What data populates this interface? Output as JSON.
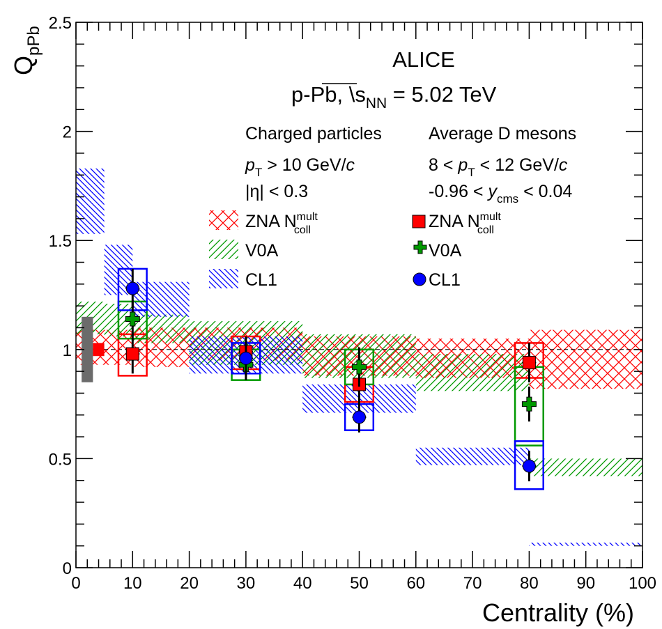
{
  "chart_data": {
    "type": "scatter",
    "xlabel": "Centrality (%)",
    "ylabel": "Q",
    "ylabel_sub": "pPb",
    "xlim": [
      0,
      100
    ],
    "ylim": [
      0,
      2.5
    ],
    "x_ticks": [
      "0",
      "10",
      "20",
      "30",
      "40",
      "50",
      "60",
      "70",
      "80",
      "90",
      "100"
    ],
    "y_ticks": [
      "0",
      "0.5",
      "1",
      "1.5",
      "2",
      "2.5"
    ],
    "reference_line": 1,
    "annotations": {
      "experiment": "ALICE",
      "system": "p-Pb, \\",
      "energy_var": "s",
      "energy_sub": "NN",
      "energy_val": " = 5.02 TeV",
      "charged_title": "Charged particles",
      "charged_pt_p": "p",
      "charged_pt_sub": "T",
      "charged_pt_rest": " > 10 GeV/",
      "charged_pt_c": "c",
      "charged_eta": "|η| < 0.3",
      "dmeson_title": "Average D mesons",
      "dmeson_pt_pre": "8 < ",
      "dmeson_pt_p": "p",
      "dmeson_pt_sub": "T",
      "dmeson_pt_rest": " < 12 GeV/",
      "dmeson_pt_c": "c",
      "dmeson_y_pre": "-0.96 < ",
      "dmeson_y_var": "y",
      "dmeson_y_sub": "cms",
      "dmeson_y_rest": " < 0.04"
    },
    "normalization_uncertainty": {
      "gray": [
        0.85,
        1.15
      ],
      "red": [
        0.97,
        1.03
      ]
    },
    "charged_bands": [
      {
        "name": "ZNA",
        "name_sup": "mult",
        "name_base": "N",
        "name_sub": "coll",
        "color": "#ff0000",
        "pattern": "cross",
        "bins": [
          [
            0,
            10,
            0.93,
            1.09
          ],
          [
            10,
            20,
            0.92,
            1.1
          ],
          [
            20,
            40,
            0.95,
            1.1
          ],
          [
            40,
            60,
            0.88,
            1.06
          ],
          [
            60,
            80,
            0.87,
            1.05
          ],
          [
            80,
            100,
            0.82,
            1.09
          ]
        ]
      },
      {
        "name": "V0A",
        "color": "#009900",
        "pattern": "diag-up",
        "bins": [
          [
            0,
            5,
            1.07,
            1.22
          ],
          [
            5,
            10,
            1.06,
            1.21
          ],
          [
            10,
            20,
            1.03,
            1.16
          ],
          [
            20,
            40,
            0.93,
            1.13
          ],
          [
            40,
            60,
            0.87,
            1.07
          ],
          [
            60,
            80,
            0.81,
            0.98
          ],
          [
            80,
            100,
            0.42,
            0.5
          ]
        ]
      },
      {
        "name": "CL1",
        "color": "#0000ff",
        "pattern": "diag-down",
        "bins": [
          [
            0,
            5,
            1.53,
            1.83
          ],
          [
            5,
            10,
            1.25,
            1.48
          ],
          [
            10,
            20,
            1.15,
            1.31
          ],
          [
            20,
            40,
            0.89,
            1.06
          ],
          [
            40,
            60,
            0.71,
            0.84
          ],
          [
            60,
            80,
            0.47,
            0.55
          ],
          [
            80,
            100,
            0.1,
            0.115
          ]
        ]
      }
    ],
    "dmeson_series": [
      {
        "name": "ZNA",
        "name_sup": "mult",
        "name_base": "N",
        "name_sub": "coll",
        "color": "#ff0000",
        "marker": "square",
        "points": [
          {
            "x": 10,
            "y": 0.98,
            "stat": 0.09,
            "sys": [
              0.88,
              1.07
            ]
          },
          {
            "x": 30,
            "y": 0.99,
            "stat": 0.07,
            "sys": [
              0.91,
              1.06
            ]
          },
          {
            "x": 50,
            "y": 0.84,
            "stat": 0.08,
            "sys": [
              0.76,
              0.92
            ]
          },
          {
            "x": 80,
            "y": 0.94,
            "stat": 0.09,
            "sys": [
              0.87,
              1.03
            ]
          }
        ]
      },
      {
        "name": "V0A",
        "color": "#009900",
        "marker": "cross",
        "points": [
          {
            "x": 10,
            "y": 1.14,
            "stat": 0.08,
            "sys": [
              1.05,
              1.22
            ]
          },
          {
            "x": 30,
            "y": 0.93,
            "stat": 0.07,
            "sys": [
              0.86,
              1.0
            ]
          },
          {
            "x": 50,
            "y": 0.92,
            "stat": 0.09,
            "sys": [
              0.84,
              1.0
            ]
          },
          {
            "x": 80,
            "y": 0.75,
            "stat": 0.08,
            "sys": [
              0.56,
              0.92
            ]
          }
        ]
      },
      {
        "name": "CL1",
        "color": "#0000ff",
        "marker": "circle",
        "points": [
          {
            "x": 10,
            "y": 1.28,
            "stat": 0.09,
            "sys": [
              1.18,
              1.37
            ]
          },
          {
            "x": 30,
            "y": 0.96,
            "stat": 0.08,
            "sys": [
              0.89,
              1.03
            ]
          },
          {
            "x": 50,
            "y": 0.69,
            "stat": 0.07,
            "sys": [
              0.63,
              0.75
            ]
          },
          {
            "x": 80,
            "y": 0.466,
            "stat": 0.07,
            "sys": [
              0.36,
              0.58
            ]
          }
        ]
      }
    ],
    "grid": false,
    "legend": "upper-right, two columns"
  }
}
